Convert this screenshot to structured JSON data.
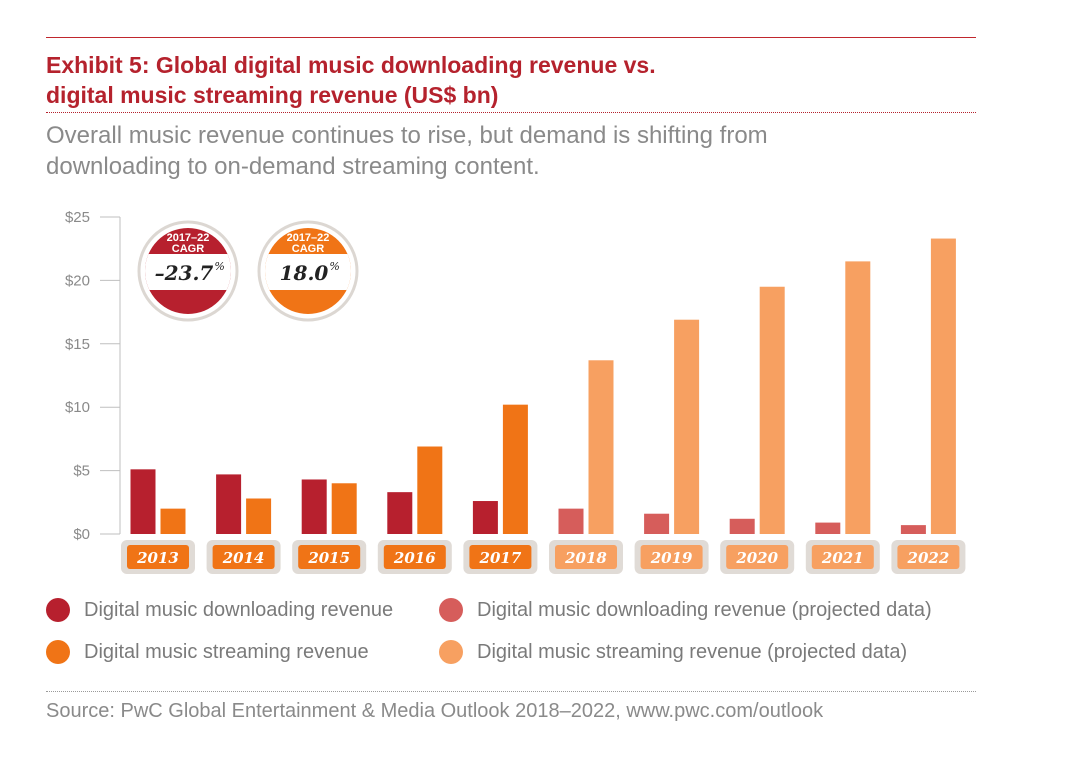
{
  "header": {
    "title_line1": "Exhibit 5: Global digital music downloading revenue vs.",
    "title_line2": "digital music streaming revenue (US$ bn)",
    "subtitle_line1": "Overall music revenue continues to rise, but demand is shifting from",
    "subtitle_line2": "downloading to on-demand streaming content."
  },
  "badges": [
    {
      "line1": "2017–22",
      "line2": "CAGR",
      "value": "–23.7",
      "suffix": "%",
      "color": "#b7202e"
    },
    {
      "line1": "2017–22",
      "line2": "CAGR",
      "value": "18.0",
      "suffix": "%",
      "color": "#f07416"
    }
  ],
  "legend": [
    {
      "label": "Digital music downloading revenue",
      "color": "#b7202e"
    },
    {
      "label": "Digital music downloading revenue (projected data)",
      "color": "#d65d5b"
    },
    {
      "label": "Digital music streaming revenue",
      "color": "#f07416"
    },
    {
      "label": "Digital music streaming revenue (projected data)",
      "color": "#f7a061"
    }
  ],
  "source": "Source: PwC Global Entertainment & Media Outlook 2018–2022, www.pwc.com/outlook",
  "chart_data": {
    "type": "bar",
    "categories": [
      "2013",
      "2014",
      "2015",
      "2016",
      "2017",
      "2018",
      "2019",
      "2020",
      "2021",
      "2022"
    ],
    "series": [
      {
        "name": "Digital music downloading revenue",
        "values": [
          5.1,
          4.7,
          4.3,
          3.3,
          2.6,
          2.0,
          1.6,
          1.2,
          0.9,
          0.7
        ]
      },
      {
        "name": "Digital music streaming revenue",
        "values": [
          2.0,
          2.8,
          4.0,
          6.9,
          10.2,
          13.7,
          16.9,
          19.5,
          21.5,
          23.3
        ]
      }
    ],
    "projected_from": "2018",
    "ylim": [
      0,
      25
    ],
    "yticks": [
      0,
      5,
      10,
      15,
      20,
      25
    ],
    "ytick_labels": [
      "$0",
      "$5",
      "$10",
      "$15",
      "$20",
      "$25"
    ],
    "colors": {
      "download": "#b7202e",
      "download_projected": "#d65d5b",
      "stream": "#f07416",
      "stream_projected": "#f7a061",
      "year_label_bg": "#e0dbd6",
      "axis": "#bfbfbf",
      "tick_text": "#8a8a8a"
    },
    "grid": false,
    "legend_position": "bottom"
  }
}
